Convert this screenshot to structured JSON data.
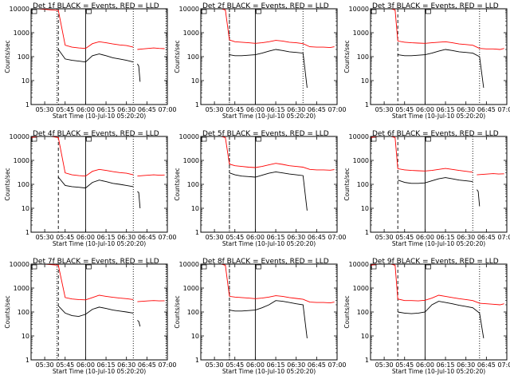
{
  "figure": {
    "xlabel": "Start Time (10-Jul-10 05:20:20)",
    "ylabel": "Counts/sec",
    "xticks": [
      "05:30",
      "05:45",
      "06:00",
      "06:15",
      "06:30",
      "06:45",
      "07:00"
    ],
    "yticks": [
      "1",
      "10",
      "100",
      "1000",
      "10000"
    ],
    "colors": {
      "events": "#000000",
      "lld": "#ff0000",
      "axes": "#000000",
      "background": "#ffffff"
    }
  },
  "chart_data": [
    {
      "type": "line",
      "title": "Det 1f BLACK = Events, RED = LLD",
      "xlabel": "Start Time (10-Jul-10 05:20:20)",
      "ylabel": "Counts/sec",
      "y_scale": "log",
      "ylim": [
        1,
        10000
      ],
      "xlim": [
        "05:20",
        "07:00"
      ],
      "markers": {
        "dashed": "05:40",
        "solid": "06:00",
        "dotted": [
          "05:39",
          "06:35",
          "06:59"
        ]
      },
      "series": [
        {
          "x": [
            "05:20",
            "05:25",
            "05:30",
            "05:35",
            "05:40",
            "05:45",
            "05:50",
            "05:55",
            "06:00",
            "06:05",
            "06:10",
            "06:15",
            "06:20",
            "06:25",
            "06:30",
            "06:35"
          ],
          "values": [
            10000,
            10000,
            9500,
            9000,
            8500,
            300,
            250,
            230,
            220,
            350,
            420,
            380,
            340,
            310,
            290,
            250
          ]
        },
        {
          "x": [
            "05:40",
            "05:45",
            "05:50",
            "05:55",
            "06:00",
            "06:05",
            "06:10",
            "06:15",
            "06:20",
            "06:25",
            "06:30",
            "06:35"
          ],
          "values": [
            200,
            80,
            70,
            65,
            60,
            110,
            130,
            110,
            90,
            80,
            70,
            60
          ]
        },
        {
          "x": [
            "06:38",
            "06:42",
            "06:46",
            "06:50",
            "06:54",
            "06:58"
          ],
          "values": [
            200,
            210,
            220,
            230,
            220,
            215
          ]
        },
        {
          "x": [
            "06:38",
            "06:39",
            "06:40"
          ],
          "values": [
            50,
            40,
            9
          ]
        }
      ]
    },
    {
      "type": "line",
      "title": "Det 2f BLACK = Events, RED = LLD",
      "xlabel": "Start Time (10-Jul-10 05:20:20)",
      "ylabel": "Counts/sec",
      "y_scale": "log",
      "ylim": [
        1,
        10000
      ],
      "xlim": [
        "05:20",
        "07:00"
      ],
      "markers": {
        "dashed": "05:41",
        "solid": "06:00",
        "dotted": [
          "05:41",
          "06:35"
        ]
      },
      "series": [
        {
          "x": [
            "05:20",
            "05:25",
            "05:30",
            "05:35",
            "05:38",
            "05:41",
            "05:45",
            "05:50",
            "05:55",
            "06:00",
            "06:05",
            "06:10",
            "06:15",
            "06:20",
            "06:25",
            "06:30",
            "06:35",
            "06:40",
            "06:45",
            "06:50",
            "06:55",
            "06:58"
          ],
          "values": [
            10000,
            10000,
            10000,
            10000,
            9000,
            500,
            420,
            400,
            380,
            360,
            380,
            420,
            480,
            450,
            400,
            380,
            350,
            260,
            250,
            250,
            240,
            260
          ]
        },
        {
          "x": [
            "05:41",
            "05:45",
            "05:50",
            "05:55",
            "06:00",
            "06:05",
            "06:10",
            "06:15",
            "06:20",
            "06:25",
            "06:30",
            "06:35",
            "06:38"
          ],
          "values": [
            120,
            110,
            110,
            115,
            120,
            140,
            170,
            200,
            180,
            160,
            150,
            140,
            5
          ]
        }
      ]
    },
    {
      "type": "line",
      "title": "Det 3f BLACK = Events, RED = LLD",
      "xlabel": "Start Time (10-Jul-10 05:20:20)",
      "ylabel": "Counts/sec",
      "y_scale": "log",
      "ylim": [
        1,
        10000
      ],
      "xlim": [
        "05:20",
        "07:00"
      ],
      "markers": {
        "dashed": "05:40",
        "solid": "06:00",
        "dotted": [
          "06:40"
        ]
      },
      "series": [
        {
          "x": [
            "05:20",
            "05:25",
            "05:30",
            "05:35",
            "05:38",
            "05:40",
            "05:45",
            "05:50",
            "05:55",
            "06:00",
            "06:05",
            "06:10",
            "06:15",
            "06:20",
            "06:25",
            "06:30",
            "06:35",
            "06:40",
            "06:45",
            "06:50",
            "06:55",
            "06:58"
          ],
          "values": [
            10000,
            10000,
            10000,
            10000,
            9000,
            450,
            400,
            380,
            370,
            360,
            380,
            400,
            420,
            380,
            340,
            320,
            300,
            220,
            210,
            210,
            200,
            220
          ]
        },
        {
          "x": [
            "05:40",
            "05:45",
            "05:50",
            "05:55",
            "06:00",
            "06:05",
            "06:10",
            "06:15",
            "06:20",
            "06:25",
            "06:30",
            "06:35",
            "06:40",
            "06:43"
          ],
          "values": [
            120,
            110,
            110,
            115,
            120,
            140,
            170,
            200,
            180,
            160,
            150,
            140,
            100,
            5
          ]
        }
      ]
    },
    {
      "type": "line",
      "title": "Det 4f BLACK = Events, RED = LLD",
      "xlabel": "Start Time (10-Jul-10 05:20:20)",
      "ylabel": "Counts/sec",
      "y_scale": "log",
      "ylim": [
        1,
        10000
      ],
      "xlim": [
        "05:20",
        "07:00"
      ],
      "markers": {
        "dashed": "05:40",
        "solid": "06:00",
        "dotted": [
          "06:35"
        ]
      },
      "series": [
        {
          "x": [
            "05:20",
            "05:25",
            "05:30",
            "05:35",
            "05:40",
            "05:45",
            "05:50",
            "05:55",
            "06:00",
            "06:05",
            "06:10",
            "06:15",
            "06:20",
            "06:25",
            "06:30",
            "06:35"
          ],
          "values": [
            9000,
            10000,
            10000,
            10000,
            9000,
            300,
            250,
            230,
            220,
            350,
            420,
            380,
            340,
            310,
            290,
            250
          ]
        },
        {
          "x": [
            "05:40",
            "05:45",
            "05:50",
            "05:55",
            "06:00",
            "06:05",
            "06:10",
            "06:15",
            "06:20",
            "06:25",
            "06:30",
            "06:35"
          ],
          "values": [
            200,
            90,
            80,
            75,
            70,
            120,
            150,
            130,
            110,
            100,
            90,
            80
          ]
        },
        {
          "x": [
            "06:38",
            "06:42",
            "06:46",
            "06:50",
            "06:54",
            "06:58"
          ],
          "values": [
            220,
            230,
            240,
            250,
            240,
            245
          ]
        },
        {
          "x": [
            "06:38",
            "06:39",
            "06:40"
          ],
          "values": [
            50,
            45,
            10
          ]
        }
      ]
    },
    {
      "type": "line",
      "title": "Det 5f BLACK = Events, RED = LLD",
      "xlabel": "Start Time (10-Jul-10 05:20:20)",
      "ylabel": "Counts/sec",
      "y_scale": "log",
      "ylim": [
        1,
        10000
      ],
      "xlim": [
        "05:20",
        "07:00"
      ],
      "markers": {
        "dashed": "05:41",
        "solid": "06:00",
        "dotted": [
          "05:41"
        ]
      },
      "series": [
        {
          "x": [
            "05:20",
            "05:25",
            "05:30",
            "05:35",
            "05:38",
            "05:41",
            "05:45",
            "05:50",
            "05:55",
            "06:00",
            "06:05",
            "06:10",
            "06:15",
            "06:20",
            "06:25",
            "06:30",
            "06:35",
            "06:40",
            "06:45",
            "06:50",
            "06:55",
            "06:58"
          ],
          "values": [
            10000,
            10000,
            10000,
            10000,
            9000,
            700,
            600,
            560,
            520,
            500,
            560,
            650,
            750,
            680,
            600,
            560,
            520,
            420,
            400,
            400,
            390,
            410
          ]
        },
        {
          "x": [
            "05:41",
            "05:45",
            "05:50",
            "05:55",
            "06:00",
            "06:05",
            "06:10",
            "06:15",
            "06:20",
            "06:25",
            "06:30",
            "06:35",
            "06:38"
          ],
          "values": [
            300,
            250,
            220,
            210,
            200,
            240,
            290,
            330,
            300,
            270,
            250,
            230,
            8
          ]
        }
      ]
    },
    {
      "type": "line",
      "title": "Det 6f BLACK = Events, RED = LLD",
      "xlabel": "Start Time (10-Jul-10 05:20:20)",
      "ylabel": "Counts/sec",
      "y_scale": "log",
      "ylim": [
        1,
        10000
      ],
      "xlim": [
        "05:20",
        "07:00"
      ],
      "markers": {
        "dashed": "05:40",
        "solid": "06:00",
        "dotted": [
          "06:35"
        ]
      },
      "series": [
        {
          "x": [
            "05:20",
            "05:25",
            "05:30",
            "05:35",
            "05:38",
            "05:40",
            "05:45",
            "05:50",
            "05:55",
            "06:00",
            "06:05",
            "06:10",
            "06:15",
            "06:20",
            "06:25",
            "06:30",
            "06:35"
          ],
          "values": [
            9000,
            10000,
            10000,
            10000,
            9000,
            450,
            400,
            380,
            370,
            360,
            380,
            420,
            460,
            420,
            380,
            350,
            320
          ]
        },
        {
          "x": [
            "05:40",
            "05:45",
            "05:50",
            "05:55",
            "06:00",
            "06:05",
            "06:10",
            "06:15",
            "06:20",
            "06:25",
            "06:30",
            "06:35"
          ],
          "values": [
            150,
            120,
            110,
            110,
            115,
            140,
            170,
            190,
            170,
            150,
            140,
            130
          ]
        },
        {
          "x": [
            "06:38",
            "06:42",
            "06:46",
            "06:50",
            "06:54",
            "06:58"
          ],
          "values": [
            250,
            260,
            270,
            280,
            270,
            275
          ]
        },
        {
          "x": [
            "06:38",
            "06:39",
            "06:40"
          ],
          "values": [
            60,
            50,
            12
          ]
        }
      ]
    },
    {
      "type": "line",
      "title": "Det 7f BLACK = Events, RED = LLD",
      "xlabel": "Start Time (10-Jul-10 05:20:20)",
      "ylabel": "Counts/sec",
      "y_scale": "log",
      "ylim": [
        1,
        10000
      ],
      "xlim": [
        "05:20",
        "07:00"
      ],
      "markers": {
        "dashed": "05:40",
        "solid": "06:00",
        "dotted": [
          "05:39",
          "06:35",
          "06:59"
        ]
      },
      "series": [
        {
          "x": [
            "05:20",
            "05:25",
            "05:30",
            "05:35",
            "05:40",
            "05:45",
            "05:50",
            "05:55",
            "06:00",
            "06:05",
            "06:10",
            "06:15",
            "06:20",
            "06:25",
            "06:30",
            "06:35"
          ],
          "values": [
            10000,
            10000,
            10000,
            9500,
            9000,
            400,
            350,
            330,
            320,
            400,
            500,
            450,
            410,
            380,
            360,
            330
          ]
        },
        {
          "x": [
            "05:40",
            "05:45",
            "05:50",
            "05:55",
            "06:00",
            "06:05",
            "06:10",
            "06:15",
            "06:20",
            "06:25",
            "06:30",
            "06:35"
          ],
          "values": [
            180,
            90,
            70,
            65,
            80,
            130,
            160,
            140,
            120,
            110,
            100,
            90
          ]
        },
        {
          "x": [
            "06:38",
            "06:42",
            "06:46",
            "06:50",
            "06:54",
            "06:58"
          ],
          "values": [
            270,
            280,
            290,
            300,
            290,
            295
          ]
        },
        {
          "x": [
            "06:38",
            "06:39",
            "06:40"
          ],
          "values": [
            45,
            40,
            25
          ]
        }
      ]
    },
    {
      "type": "line",
      "title": "Det 8f BLACK = Events, RED = LLD",
      "xlabel": "Start Time (10-Jul-10 05:20:20)",
      "ylabel": "Counts/sec",
      "y_scale": "log",
      "ylim": [
        1,
        10000
      ],
      "xlim": [
        "05:20",
        "07:00"
      ],
      "markers": {
        "dashed": "05:41",
        "solid": "06:00",
        "dotted": [
          "05:41"
        ]
      },
      "series": [
        {
          "x": [
            "05:20",
            "05:25",
            "05:30",
            "05:35",
            "05:38",
            "05:41",
            "05:45",
            "05:50",
            "05:55",
            "06:00",
            "06:05",
            "06:10",
            "06:15",
            "06:20",
            "06:25",
            "06:30",
            "06:35",
            "06:40",
            "06:45",
            "06:50",
            "06:55",
            "06:58"
          ],
          "values": [
            10000,
            10000,
            10000,
            10000,
            9000,
            450,
            420,
            400,
            380,
            360,
            380,
            420,
            480,
            450,
            400,
            370,
            340,
            260,
            250,
            250,
            240,
            260
          ]
        },
        {
          "x": [
            "05:41",
            "05:45",
            "05:50",
            "05:55",
            "06:00",
            "06:05",
            "06:10",
            "06:15",
            "06:20",
            "06:25",
            "06:30",
            "06:35",
            "06:38"
          ],
          "values": [
            120,
            110,
            110,
            115,
            120,
            150,
            200,
            300,
            280,
            250,
            220,
            200,
            8
          ]
        }
      ]
    },
    {
      "type": "line",
      "title": "Det 9f BLACK = Events, RED = LLD",
      "xlabel": "Start Time (10-Jul-10 05:20:20)",
      "ylabel": "Counts/sec",
      "y_scale": "log",
      "ylim": [
        1,
        10000
      ],
      "xlim": [
        "05:20",
        "07:00"
      ],
      "markers": {
        "dashed": "05:40",
        "solid": "06:00",
        "dotted": [
          "06:40"
        ]
      },
      "series": [
        {
          "x": [
            "05:20",
            "05:25",
            "05:30",
            "05:35",
            "05:38",
            "05:40",
            "05:45",
            "05:50",
            "05:55",
            "06:00",
            "06:05",
            "06:10",
            "06:15",
            "06:20",
            "06:25",
            "06:30",
            "06:35",
            "06:40",
            "06:45",
            "06:50",
            "06:55",
            "06:58"
          ],
          "values": [
            9000,
            10000,
            10000,
            10000,
            9000,
            350,
            300,
            300,
            290,
            310,
            380,
            500,
            450,
            400,
            360,
            330,
            300,
            230,
            220,
            210,
            200,
            220
          ]
        },
        {
          "x": [
            "05:40",
            "05:45",
            "05:50",
            "05:55",
            "06:00",
            "06:05",
            "06:10",
            "06:15",
            "06:20",
            "06:25",
            "06:30",
            "06:35",
            "06:40",
            "06:43"
          ],
          "values": [
            100,
            90,
            85,
            90,
            100,
            200,
            280,
            250,
            220,
            190,
            170,
            150,
            90,
            8
          ]
        }
      ]
    }
  ]
}
